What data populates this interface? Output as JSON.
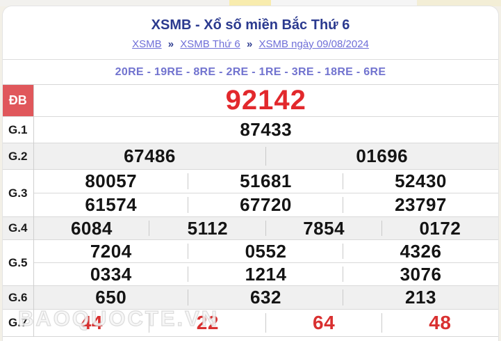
{
  "page": {
    "title": "XSMB - Xổ số miền Bắc Thứ 6",
    "breadcrumb": {
      "separator": "»",
      "items": [
        {
          "label": "XSMB"
        },
        {
          "label": "XSMB Thứ 6"
        },
        {
          "label": "XSMB ngày 09/08/2024"
        }
      ]
    },
    "loto_line": "20RE - 19RE - 8RE - 2RE - 1RE - 3RE - 18RE - 6RE",
    "watermark": "BAOQUOCTE.VN"
  },
  "results_table": {
    "rows": [
      {
        "id": "db",
        "label": "ĐB",
        "label_style": "special",
        "value_style": "special",
        "shaded": false,
        "lines": [
          [
            "92142"
          ]
        ]
      },
      {
        "id": "g1",
        "label": "G.1",
        "shaded": false,
        "lines": [
          [
            "87433"
          ]
        ]
      },
      {
        "id": "g2",
        "label": "G.2",
        "shaded": true,
        "lines": [
          [
            "67486",
            "01696"
          ]
        ]
      },
      {
        "id": "g3",
        "label": "G.3",
        "shaded": false,
        "lines": [
          [
            "80057",
            "51681",
            "52430"
          ],
          [
            "61574",
            "67720",
            "23797"
          ]
        ]
      },
      {
        "id": "g4",
        "label": "G.4",
        "shaded": true,
        "lines": [
          [
            "6084",
            "5112",
            "7854",
            "0172"
          ]
        ]
      },
      {
        "id": "g5",
        "label": "G.5",
        "shaded": false,
        "lines": [
          [
            "7204",
            "0552",
            "4326"
          ],
          [
            "0334",
            "1214",
            "3076"
          ]
        ]
      },
      {
        "id": "g6",
        "label": "G.6",
        "shaded": true,
        "lines": [
          [
            "650",
            "632",
            "213"
          ]
        ]
      },
      {
        "id": "g7",
        "label": "G.7",
        "shaded": false,
        "value_style": "red",
        "lines": [
          [
            "44",
            "22",
            "64",
            "48"
          ]
        ]
      }
    ]
  },
  "colors": {
    "title_navy": "#2b3a8f",
    "link_purple": "#6f6fd8",
    "loto_purple": "#7173cf",
    "special_red_bg": "#e0575b",
    "special_number_red": "#e2282c",
    "g7_red": "#d93030",
    "shaded_row_bg": "#f0f0f0",
    "number_black": "#141414"
  }
}
